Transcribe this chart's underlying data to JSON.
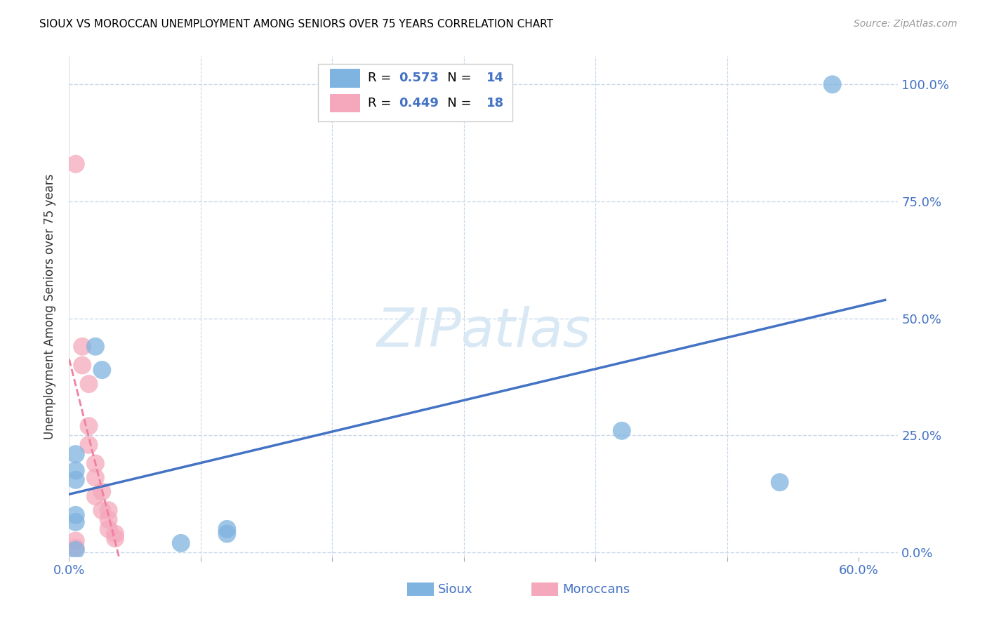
{
  "title": "SIOUX VS MOROCCAN UNEMPLOYMENT AMONG SENIORS OVER 75 YEARS CORRELATION CHART",
  "source": "Source: ZipAtlas.com",
  "ylabel": "Unemployment Among Seniors over 75 years",
  "xlim": [
    0.0,
    0.63
  ],
  "ylim": [
    -0.01,
    1.06
  ],
  "xticks": [
    0.0,
    0.1,
    0.2,
    0.3,
    0.4,
    0.5,
    0.6
  ],
  "xticklabels": [
    "0.0%",
    "",
    "",
    "",
    "",
    "",
    "60.0%"
  ],
  "yticks": [
    0.0,
    0.25,
    0.5,
    0.75,
    1.0
  ],
  "yticklabels": [
    "0.0%",
    "25.0%",
    "50.0%",
    "75.0%",
    "100.0%"
  ],
  "sioux_x": [
    0.58,
    0.42,
    0.54,
    0.02,
    0.025,
    0.005,
    0.005,
    0.005,
    0.005,
    0.005,
    0.12,
    0.12,
    0.005,
    0.085
  ],
  "sioux_y": [
    1.0,
    0.26,
    0.15,
    0.44,
    0.39,
    0.21,
    0.175,
    0.155,
    0.08,
    0.065,
    0.05,
    0.04,
    0.005,
    0.02
  ],
  "moroccan_x": [
    0.005,
    0.01,
    0.01,
    0.015,
    0.015,
    0.015,
    0.02,
    0.02,
    0.02,
    0.025,
    0.025,
    0.03,
    0.03,
    0.03,
    0.035,
    0.035,
    0.005,
    0.005
  ],
  "moroccan_y": [
    0.83,
    0.44,
    0.4,
    0.36,
    0.27,
    0.23,
    0.19,
    0.16,
    0.12,
    0.13,
    0.09,
    0.09,
    0.07,
    0.05,
    0.04,
    0.03,
    0.025,
    0.01
  ],
  "sioux_color": "#7fb3e0",
  "moroccan_color": "#f5a8bc",
  "sioux_R": 0.573,
  "sioux_N": 14,
  "moroccan_R": 0.449,
  "moroccan_N": 18,
  "sioux_line_color": "#4472c4",
  "moroccan_line_color": "#f080a0",
  "background_color": "#ffffff",
  "grid_color": "#c8d8ea",
  "watermark_color": "#d8e8f4",
  "title_fontsize": 11,
  "tick_color": "#4472c4",
  "label_color": "#333333"
}
